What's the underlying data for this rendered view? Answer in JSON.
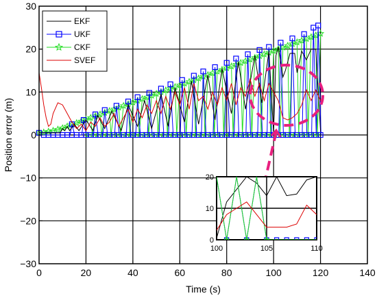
{
  "chart_data": {
    "type": "line",
    "title": "",
    "xlabel": "Time (s)",
    "ylabel": "Position error (m)",
    "xlim": [
      0,
      140
    ],
    "ylim": [
      -30,
      30
    ],
    "xticks": [
      "0",
      "20",
      "40",
      "60",
      "80",
      "100",
      "120",
      "140"
    ],
    "yticks": [
      "−30",
      "−20",
      "−10",
      "0",
      "10",
      "20",
      "30"
    ],
    "grid": true,
    "legend_position": "top-left",
    "series": [
      {
        "name": "EKF",
        "color": "#000000",
        "marker": "none",
        "x": [
          0,
          4,
          9,
          10,
          11,
          12,
          13,
          15,
          17,
          20,
          23,
          25,
          28,
          31,
          35,
          38,
          42,
          45,
          48,
          52,
          55,
          58,
          62,
          65,
          68,
          72,
          75,
          78,
          82,
          85,
          88,
          92,
          95,
          98,
          100,
          101,
          102,
          104,
          105,
          107,
          109,
          110,
          112,
          114,
          116,
          118,
          120
        ],
        "y": [
          0.5,
          0.5,
          0.5,
          1.5,
          1.0,
          2.0,
          1.0,
          2.5,
          1.0,
          3.5,
          1.0,
          4.5,
          1.5,
          5.5,
          1.0,
          7.0,
          2.0,
          8.0,
          1.5,
          9.5,
          2.0,
          11.0,
          3.0,
          12.5,
          2.5,
          14.0,
          3.5,
          15.5,
          5.0,
          17.0,
          6.0,
          18.5,
          7.5,
          19.5,
          0.5,
          18.5,
          20.5,
          13.5,
          15.0,
          19.0,
          19.0,
          14.5,
          19.5,
          17.5,
          20.0,
          20.0,
          1.0
        ]
      },
      {
        "name": "UKF",
        "color": "#0000ff",
        "marker": "square",
        "x": [
          0,
          2,
          4,
          6,
          8,
          10,
          12,
          14,
          16,
          18,
          20,
          22,
          24,
          26,
          28,
          30,
          32,
          34,
          36,
          38,
          40,
          42,
          44,
          46,
          48,
          50,
          52,
          54,
          56,
          58,
          60,
          62,
          64,
          66,
          68,
          70,
          72,
          74,
          76,
          78,
          80,
          82,
          84,
          86,
          88,
          90,
          92,
          94,
          96,
          98,
          100,
          102,
          104,
          106,
          108,
          110,
          112,
          114,
          116,
          118,
          120
        ],
        "y": [
          0.5,
          0,
          0,
          0,
          0,
          0,
          0,
          0,
          0,
          0,
          0,
          0,
          0,
          0,
          0,
          0,
          0,
          0,
          0,
          0,
          0,
          0,
          0,
          0,
          0,
          0,
          0,
          0,
          0,
          0,
          0,
          0,
          0,
          0,
          0,
          0,
          0,
          0,
          0,
          0,
          0,
          0,
          0,
          0,
          0,
          0,
          0,
          0,
          0,
          0,
          0,
          0,
          0,
          0,
          0,
          0,
          0,
          0,
          0,
          0,
          0
        ],
        "peaks_x": [
          14,
          19,
          24,
          28,
          33,
          38,
          42,
          47,
          52,
          56,
          61,
          66,
          70,
          75,
          80,
          84,
          89,
          94,
          98,
          103,
          108,
          113,
          117,
          119
        ],
        "peaks_y": [
          2.5,
          3.5,
          4.8,
          5.8,
          6.8,
          7.8,
          8.8,
          9.8,
          10.8,
          11.8,
          12.8,
          13.8,
          14.8,
          15.8,
          16.8,
          17.8,
          18.8,
          19.8,
          20.5,
          21.5,
          22.5,
          23.5,
          25.0,
          25.5
        ]
      },
      {
        "name": "CKF",
        "color": "#22dd22",
        "marker": "star",
        "x": [
          0,
          2,
          4,
          6,
          8,
          10,
          12,
          14,
          16,
          18,
          20,
          22,
          24,
          26,
          28,
          30,
          32,
          34,
          36,
          38,
          40,
          42,
          44,
          46,
          48,
          50,
          52,
          54,
          56,
          58,
          60,
          62,
          64,
          66,
          68,
          70,
          72,
          74,
          76,
          78,
          80,
          82,
          84,
          86,
          88,
          90,
          92,
          94,
          96,
          98,
          100,
          102,
          104,
          106,
          108,
          110,
          112,
          114,
          116,
          118,
          120
        ],
        "y": [
          0.5,
          0.6,
          0.8,
          1.0,
          1.3,
          1.6,
          2.0,
          2.4,
          2.8,
          3.2,
          3.6,
          4.0,
          4.4,
          4.8,
          5.2,
          5.6,
          6.0,
          6.4,
          6.8,
          7.2,
          7.6,
          8.0,
          8.4,
          8.8,
          9.2,
          9.6,
          10.0,
          10.4,
          10.8,
          11.2,
          11.6,
          12.0,
          12.4,
          12.8,
          13.2,
          13.6,
          14.0,
          14.4,
          14.8,
          15.2,
          15.6,
          16.0,
          16.4,
          16.8,
          17.2,
          17.6,
          18.0,
          18.4,
          18.8,
          19.2,
          19.6,
          20.0,
          20.4,
          20.8,
          21.2,
          21.6,
          22.0,
          22.4,
          22.8,
          23.2,
          23.6
        ]
      },
      {
        "name": "SVEF",
        "color": "#dd0000",
        "marker": "none",
        "x": [
          0,
          1,
          2,
          3,
          4,
          5,
          6,
          8,
          10,
          12,
          14,
          16,
          18,
          20,
          22,
          24,
          26,
          28,
          30,
          32,
          34,
          36,
          38,
          40,
          42,
          44,
          46,
          48,
          50,
          52,
          54,
          56,
          58,
          60,
          62,
          64,
          66,
          68,
          70,
          72,
          74,
          76,
          78,
          80,
          82,
          84,
          86,
          88,
          90,
          92,
          94,
          96,
          98,
          100,
          102,
          104,
          106,
          108,
          110,
          112,
          114,
          116,
          118,
          120
        ],
        "y": [
          14.5,
          11,
          7,
          4,
          2,
          2.5,
          5,
          7.5,
          7,
          5,
          3,
          1.5,
          2.5,
          1,
          3,
          2,
          4,
          2,
          3,
          5,
          2,
          4,
          6,
          3,
          6,
          4,
          7,
          5,
          8,
          5,
          9,
          6,
          10,
          7,
          11,
          6,
          12,
          8,
          9,
          6,
          10,
          7,
          11,
          8,
          12,
          7,
          11,
          9,
          13,
          9,
          12,
          8,
          12,
          10,
          8,
          4,
          3.5,
          4,
          5,
          7,
          10.5,
          8,
          10.5,
          8
        ]
      }
    ],
    "inset": {
      "xlim": [
        100,
        110
      ],
      "ylim": [
        0,
        20
      ],
      "xticks": [
        "100",
        "105",
        "110"
      ],
      "yticks": [
        "0",
        "10",
        "20"
      ],
      "series": [
        {
          "name": "EKF",
          "x": [
            100,
            101,
            103,
            104,
            105,
            106,
            107,
            108,
            109,
            110
          ],
          "y": [
            0.5,
            12,
            20,
            18,
            14,
            20,
            14,
            14.5,
            19,
            20
          ]
        },
        {
          "name": "UKF",
          "x": [
            100,
            101,
            102,
            103,
            104,
            105,
            106,
            107,
            108,
            109,
            110
          ],
          "y": [
            20,
            0,
            20,
            0,
            20,
            0,
            0,
            0,
            0,
            0,
            0
          ]
        },
        {
          "name": "CKF",
          "x": [
            100,
            101,
            102,
            103,
            104,
            105,
            106,
            107,
            108,
            109,
            110
          ],
          "y": [
            20,
            0,
            20,
            0,
            20,
            0,
            0,
            0,
            0,
            0,
            0
          ]
        },
        {
          "name": "SVEF",
          "x": [
            100,
            101,
            102,
            103,
            104,
            105,
            106,
            107,
            108,
            109,
            110
          ],
          "y": [
            3,
            8,
            10,
            12,
            8,
            4,
            4,
            4,
            5,
            11,
            8
          ]
        }
      ]
    }
  }
}
